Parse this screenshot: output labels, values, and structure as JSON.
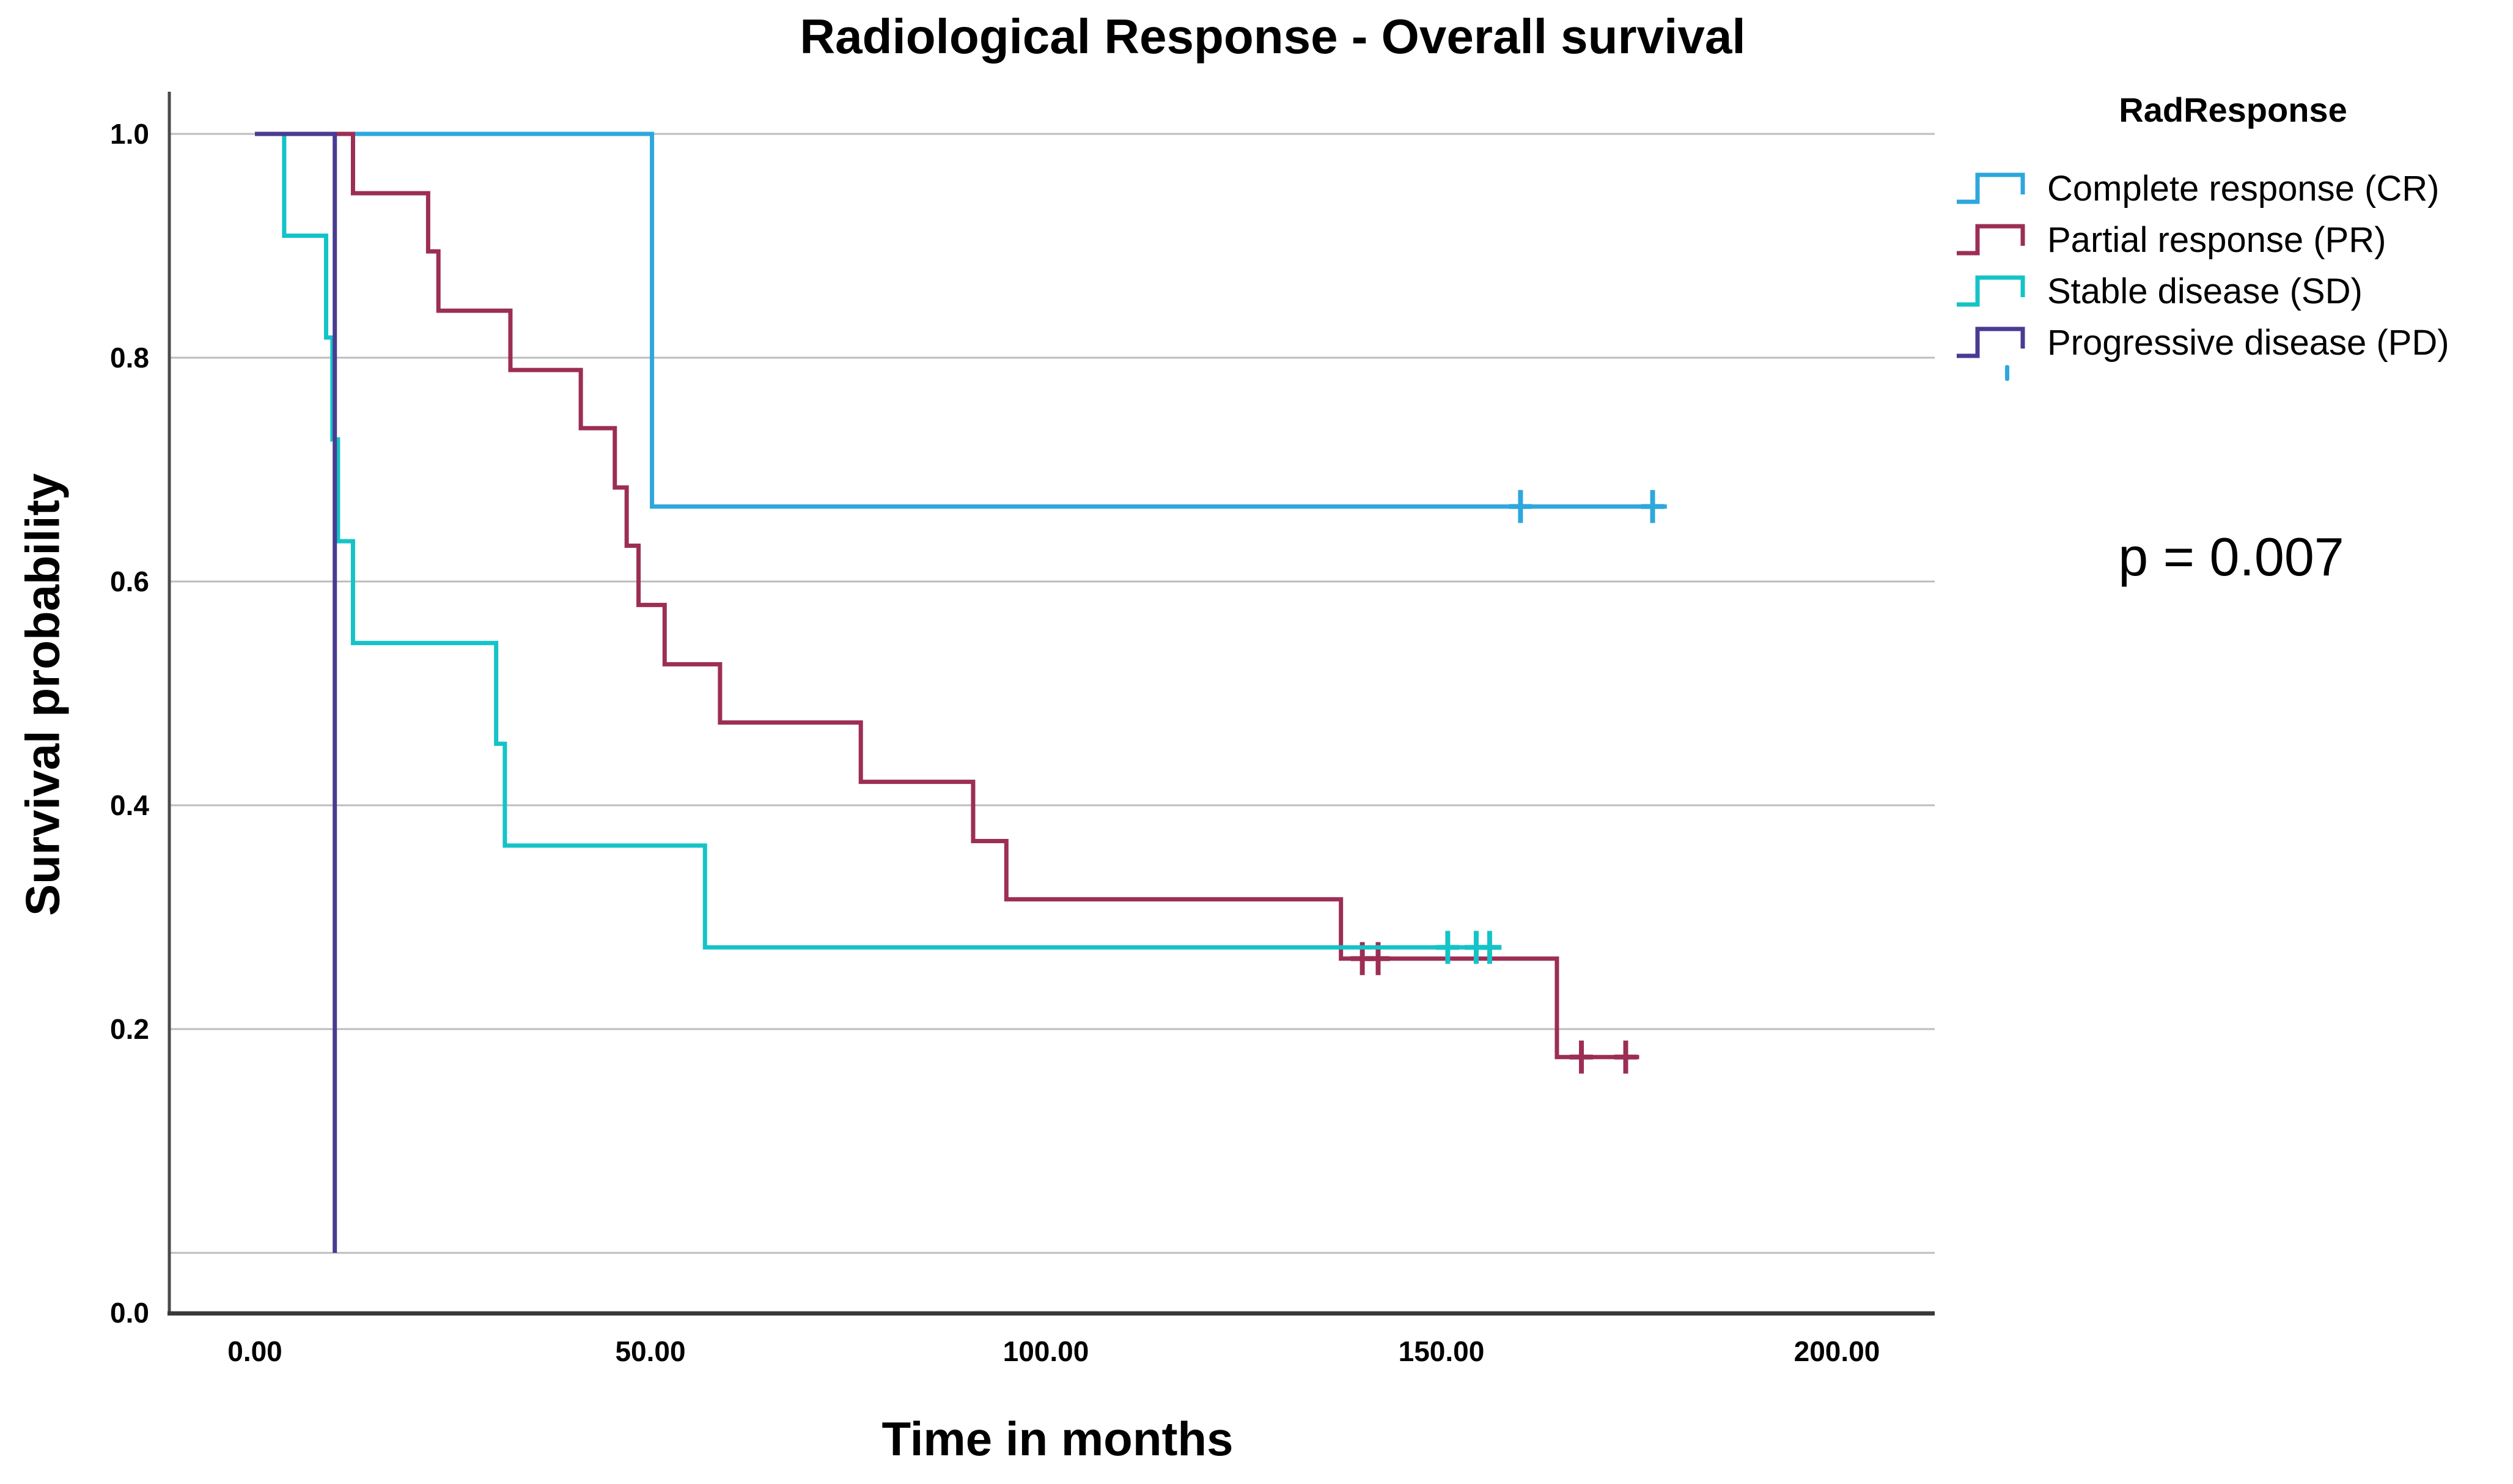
{
  "figure": {
    "title": "Radiological Response - Overall survival",
    "p_value_label": "p = 0.007",
    "x_axis": {
      "label": "Time in months",
      "ticks": [
        "0.00",
        "50.00",
        "100.00",
        "150.00",
        "200.00"
      ],
      "tick_values": [
        0,
        50,
        100,
        150,
        200
      ]
    },
    "y_axis": {
      "label": "Survival probability",
      "ticks": [
        "1.0",
        "0.8",
        "0.6",
        "0.4",
        "0.2",
        "0.0"
      ],
      "tick_values": [
        1.0,
        0.8,
        0.6,
        0.4,
        0.2,
        0.0
      ]
    },
    "legend": {
      "title": "RadResponse",
      "entries": [
        {
          "label": "Complete response (CR)",
          "color": "#2ea7dd"
        },
        {
          "label": "Partial response (PR)",
          "color": "#9c2e55"
        },
        {
          "label": "Stable disease (SD)",
          "color": "#14c3c7"
        },
        {
          "label": "Progressive disease (PD)",
          "color": "#4a3b92"
        }
      ]
    }
  },
  "chart_data": {
    "type": "line",
    "subtype": "kaplan-meier-step",
    "title": "Radiological Response - Overall survival",
    "xlabel": "Time in months",
    "ylabel": "Survival probability",
    "xlim": [
      0,
      212
    ],
    "ylim": [
      0.0,
      1.0
    ],
    "xticks": [
      0,
      50,
      100,
      150,
      200
    ],
    "yticks": [
      1.0,
      0.8,
      0.6,
      0.4,
      0.2,
      0.0
    ],
    "grid": "horizontal",
    "legend_position": "right",
    "p_value": 0.007,
    "series": [
      {
        "name": "Complete response (CR)",
        "color": "#2ea7dd",
        "start": [
          0,
          1.0
        ],
        "steps": [
          [
            50.2,
            0.667
          ]
        ],
        "end_time": 178.5,
        "censored": [
          [
            160.0,
            0.667
          ],
          [
            176.7,
            0.667
          ]
        ]
      },
      {
        "name": "Partial response (PR)",
        "color": "#9c2e55",
        "start": [
          0,
          1.0
        ],
        "steps": [
          [
            12.4,
            0.947
          ],
          [
            21.9,
            0.895
          ],
          [
            23.2,
            0.842
          ],
          [
            32.3,
            0.789
          ],
          [
            41.2,
            0.737
          ],
          [
            45.5,
            0.684
          ],
          [
            47.0,
            0.632
          ],
          [
            48.5,
            0.579
          ],
          [
            51.8,
            0.526
          ],
          [
            58.8,
            0.474
          ],
          [
            76.6,
            0.421
          ],
          [
            90.8,
            0.368
          ],
          [
            95.0,
            0.316
          ],
          [
            137.3,
            0.263
          ],
          [
            164.6,
            0.175
          ]
        ],
        "end_time": 175.0,
        "censored": [
          [
            140.0,
            0.263
          ],
          [
            142.0,
            0.263
          ],
          [
            167.7,
            0.175
          ],
          [
            173.3,
            0.175
          ]
        ]
      },
      {
        "name": "Stable disease (SD)",
        "color": "#14c3c7",
        "start": [
          0,
          1.0
        ],
        "steps": [
          [
            3.7,
            0.909
          ],
          [
            9.0,
            0.818
          ],
          [
            9.8,
            0.727
          ],
          [
            10.5,
            0.636
          ],
          [
            12.4,
            0.545
          ],
          [
            30.5,
            0.455
          ],
          [
            31.6,
            0.364
          ],
          [
            56.9,
            0.273
          ]
        ],
        "end_time": 157.6,
        "censored": [
          [
            150.8,
            0.273
          ],
          [
            154.4,
            0.273
          ],
          [
            156.1,
            0.273
          ]
        ]
      },
      {
        "name": "Progressive disease (PD)",
        "color": "#4a3b92",
        "start": [
          0,
          1.0
        ],
        "steps": [
          [
            10.1,
            0.0
          ]
        ],
        "end_time": 10.1,
        "censored": []
      }
    ]
  }
}
